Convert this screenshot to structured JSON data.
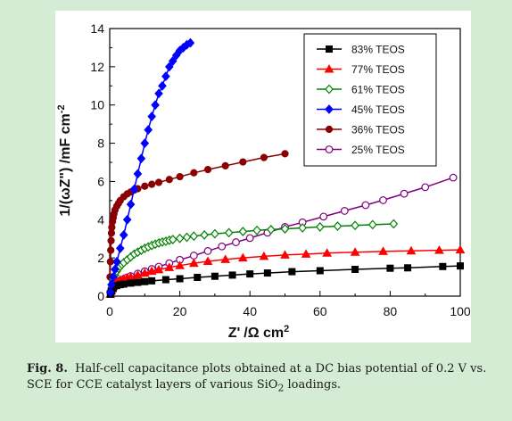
{
  "chart_data": {
    "type": "line",
    "title": "",
    "xlabel": "Z'  /Ω cm²",
    "xlabel_main": "Z'",
    "xlabel_unit": "/Ω cm",
    "xlabel_sup": "2",
    "ylabel": "1/(ωZ\") /mF cm⁻²",
    "ylabel_main": "1/(ωZ\") /mF cm",
    "ylabel_sup": "-2",
    "xlim": [
      0,
      100
    ],
    "ylim": [
      0,
      14
    ],
    "xticks": [
      0,
      20,
      40,
      60,
      80,
      100
    ],
    "yticks": [
      0,
      2,
      4,
      6,
      8,
      10,
      12,
      14
    ],
    "grid": false,
    "legend_position": "top-right",
    "series": [
      {
        "name": "83% TEOS",
        "color": "#000000",
        "marker": "square",
        "x": [
          0.2,
          0.5,
          1,
          2,
          3,
          4,
          6,
          8,
          10,
          12,
          16,
          20,
          25,
          30,
          35,
          40,
          45,
          52,
          60,
          70,
          80,
          85,
          95,
          100
        ],
        "y": [
          0.1,
          0.25,
          0.4,
          0.55,
          0.6,
          0.63,
          0.68,
          0.72,
          0.76,
          0.8,
          0.86,
          0.91,
          0.98,
          1.04,
          1.1,
          1.16,
          1.21,
          1.28,
          1.33,
          1.4,
          1.46,
          1.48,
          1.55,
          1.58
        ]
      },
      {
        "name": "77% TEOS",
        "color": "#ff0000",
        "marker": "triangle",
        "x": [
          0.2,
          0.5,
          1,
          1.5,
          2,
          3,
          4,
          5,
          6,
          8,
          10,
          12,
          14,
          17,
          20,
          24,
          28,
          33,
          38,
          44,
          50,
          56,
          62,
          70,
          78,
          86,
          94,
          100
        ],
        "y": [
          0.1,
          0.3,
          0.5,
          0.65,
          0.75,
          0.85,
          0.9,
          0.95,
          1.0,
          1.1,
          1.2,
          1.3,
          1.38,
          1.5,
          1.6,
          1.72,
          1.82,
          1.92,
          2.0,
          2.08,
          2.15,
          2.2,
          2.25,
          2.3,
          2.34,
          2.37,
          2.4,
          2.42
        ]
      },
      {
        "name": "61% TEOS",
        "color": "#008000",
        "marker": "diamond-open",
        "x": [
          0.3,
          0.6,
          1,
          1.5,
          2,
          2.5,
          3,
          3.5,
          4,
          5,
          6,
          7,
          8,
          9,
          10,
          11,
          12,
          13,
          14,
          15,
          16,
          17,
          18,
          20,
          22,
          24,
          27,
          30,
          34,
          38,
          42,
          46,
          50,
          55,
          60,
          65,
          70,
          75,
          81
        ],
        "y": [
          0.3,
          0.6,
          0.9,
          1.1,
          1.3,
          1.45,
          1.55,
          1.65,
          1.75,
          1.9,
          2.05,
          2.2,
          2.3,
          2.4,
          2.5,
          2.58,
          2.65,
          2.72,
          2.78,
          2.83,
          2.87,
          2.92,
          2.96,
          3.02,
          3.08,
          3.14,
          3.2,
          3.26,
          3.32,
          3.38,
          3.44,
          3.48,
          3.52,
          3.57,
          3.62,
          3.66,
          3.7,
          3.74,
          3.78
        ]
      },
      {
        "name": "45% TEOS",
        "color": "#0000ff",
        "marker": "diamond",
        "x": [
          0.2,
          0.5,
          1,
          1.5,
          2,
          3,
          4,
          5,
          6,
          7,
          8,
          9,
          10,
          11,
          12,
          13,
          14,
          15,
          16,
          17,
          18,
          19,
          20,
          21,
          22,
          23
        ],
        "y": [
          0.2,
          0.6,
          1.0,
          1.4,
          1.8,
          2.5,
          3.2,
          4.0,
          4.8,
          5.6,
          6.4,
          7.2,
          8.0,
          8.7,
          9.4,
          10.0,
          10.6,
          11.0,
          11.5,
          12.0,
          12.3,
          12.6,
          12.85,
          13.0,
          13.15,
          13.25
        ]
      },
      {
        "name": "36% TEOS",
        "color": "#8b0000",
        "marker": "circle",
        "x": [
          0.1,
          0.2,
          0.3,
          0.4,
          0.5,
          0.6,
          0.8,
          1.0,
          1.2,
          1.5,
          2,
          2.5,
          3,
          4,
          5,
          6,
          7,
          8,
          10,
          12,
          14,
          17,
          20,
          24,
          28,
          33,
          38,
          44,
          50
        ],
        "y": [
          1.0,
          1.8,
          2.4,
          2.9,
          3.3,
          3.6,
          3.9,
          4.1,
          4.3,
          4.5,
          4.7,
          4.85,
          5.0,
          5.2,
          5.35,
          5.45,
          5.55,
          5.62,
          5.75,
          5.85,
          5.95,
          6.1,
          6.25,
          6.45,
          6.62,
          6.82,
          7.02,
          7.25,
          7.45
        ]
      },
      {
        "name": "25% TEOS",
        "color": "#800080",
        "marker": "circle-open",
        "x": [
          0.2,
          0.5,
          1,
          2,
          3,
          4,
          5,
          6,
          8,
          10,
          12,
          14,
          17,
          20,
          24,
          28,
          32,
          36,
          40,
          45,
          50,
          55,
          61,
          67,
          73,
          78,
          84,
          90,
          98
        ],
        "y": [
          0.2,
          0.4,
          0.55,
          0.72,
          0.82,
          0.9,
          0.98,
          1.05,
          1.18,
          1.3,
          1.42,
          1.54,
          1.72,
          1.9,
          2.12,
          2.36,
          2.6,
          2.82,
          3.04,
          3.32,
          3.62,
          3.86,
          4.16,
          4.46,
          4.76,
          5.02,
          5.36,
          5.7,
          6.2
        ]
      }
    ]
  },
  "caption": {
    "label": "Fig. 8.",
    "text_before": "Half-cell capacitance plots obtained at a DC bias potential of 0.2 V vs. SCE for CCE catalyst layers of various SiO",
    "subscript": "2",
    "text_after": " loadings."
  }
}
